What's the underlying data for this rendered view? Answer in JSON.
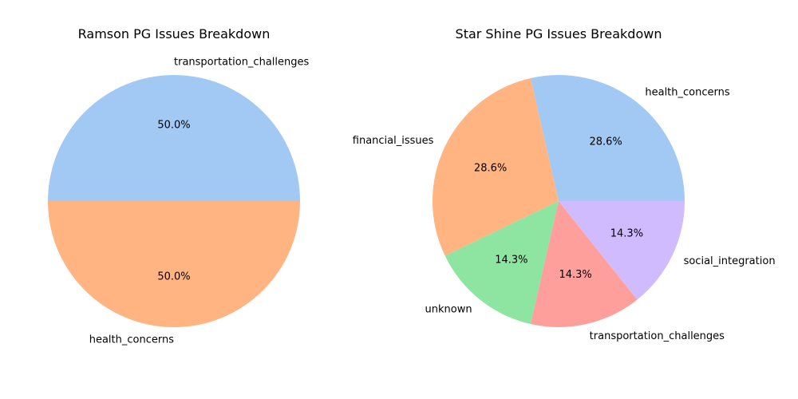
{
  "chart_data": [
    {
      "type": "pie",
      "title": "Ramson PG Issues Breakdown",
      "start_angle_deg": 0,
      "direction": "counterclockwise",
      "slices": [
        {
          "label": "transportation_challenges",
          "value": 50.0,
          "pct_label": "50.0%",
          "color": "#a1c9f4"
        },
        {
          "label": "health_concerns",
          "value": 50.0,
          "pct_label": "50.0%",
          "color": "#ffb482"
        }
      ]
    },
    {
      "type": "pie",
      "title": "Star Shine PG Issues Breakdown",
      "start_angle_deg": 0,
      "direction": "counterclockwise",
      "slices": [
        {
          "label": "health_concerns",
          "value": 28.6,
          "pct_label": "28.6%",
          "color": "#a1c9f4"
        },
        {
          "label": "financial_issues",
          "value": 28.6,
          "pct_label": "28.6%",
          "color": "#ffb482"
        },
        {
          "label": "unknown",
          "value": 14.3,
          "pct_label": "14.3%",
          "color": "#8de5a1"
        },
        {
          "label": "transportation_challenges",
          "value": 14.3,
          "pct_label": "14.3%",
          "color": "#ff9f9b"
        },
        {
          "label": "social_integration",
          "value": 14.3,
          "pct_label": "14.3%",
          "color": "#d0bbff"
        }
      ]
    }
  ]
}
